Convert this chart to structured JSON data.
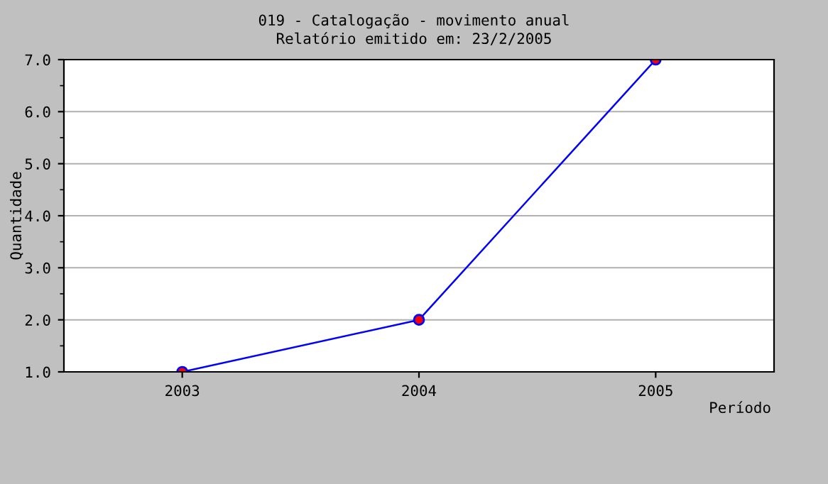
{
  "chart_data": {
    "type": "line",
    "title": "019 - Catalogação - movimento anual",
    "subtitle": "Relatório emitido em: 23/2/2005",
    "xlabel": "Período",
    "ylabel": "Quantidade",
    "categories": [
      "2003",
      "2004",
      "2005"
    ],
    "series": [
      {
        "color": "#0000ff",
        "values": [
          1.0,
          2.0,
          7.0
        ]
      }
    ],
    "ylim": [
      1.0,
      7.0
    ],
    "yticks": [
      {
        "value": 1,
        "label": "1.0"
      },
      {
        "value": 2,
        "label": "2.0"
      },
      {
        "value": 3,
        "label": "3.0"
      },
      {
        "value": 4,
        "label": "4.0"
      },
      {
        "value": 5,
        "label": "5.0"
      },
      {
        "value": 6,
        "label": "6.0"
      },
      {
        "value": 7,
        "label": "7.0"
      }
    ],
    "grid": "y",
    "marker": "circle",
    "line_style": "solid"
  }
}
